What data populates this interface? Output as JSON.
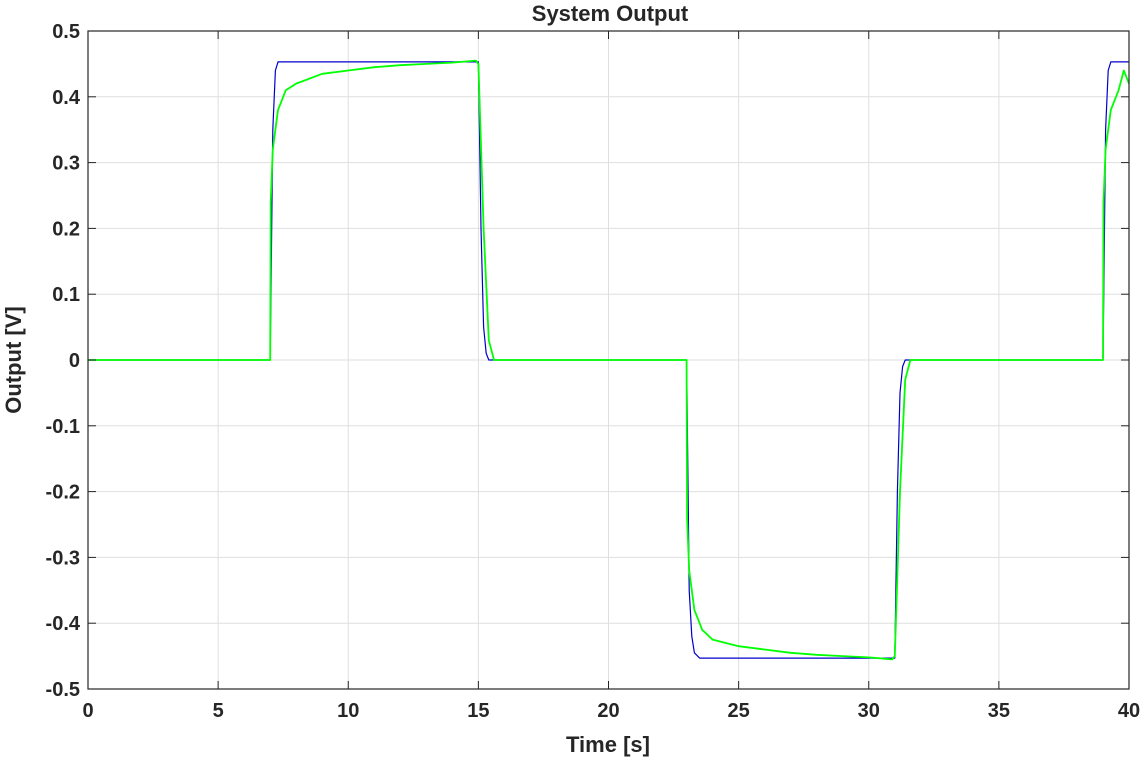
{
  "chart_data": {
    "type": "line",
    "title": "System Output",
    "xlabel": "Time [s]",
    "ylabel": "Output [V]",
    "xlim": [
      0,
      40
    ],
    "ylim": [
      -0.5,
      0.5
    ],
    "grid": true,
    "x_ticks": [
      0,
      5,
      10,
      15,
      20,
      25,
      30,
      35,
      40
    ],
    "x_tick_labels": [
      "0",
      "5",
      "10",
      "15",
      "20",
      "25",
      "30",
      "35",
      "40"
    ],
    "y_ticks": [
      0.5,
      0.4,
      0.3,
      0.2,
      0.1,
      0,
      -0.1,
      -0.2,
      -0.3,
      -0.4,
      -0.5
    ],
    "y_tick_labels": [
      "0.5",
      "0.4",
      "0.3",
      "0.2",
      "0.1",
      "0",
      "-0.1",
      "-0.2",
      "-0.3",
      "-0.4",
      "-0.5"
    ],
    "series": [
      {
        "color": "#0000cc",
        "x": [
          0,
          7,
          7.1,
          7.2,
          7.3,
          15,
          15.1,
          15.2,
          15.3,
          15.4,
          23,
          23.1,
          23.2,
          23.3,
          23.5,
          31,
          31.1,
          31.2,
          31.3,
          31.4,
          39,
          39.1,
          39.2,
          39.3,
          40
        ],
        "y": [
          0,
          0,
          0.35,
          0.44,
          0.453,
          0.453,
          0.2,
          0.05,
          0.01,
          0,
          0,
          -0.35,
          -0.42,
          -0.445,
          -0.453,
          -0.453,
          -0.2,
          -0.05,
          -0.01,
          0,
          0,
          0.35,
          0.44,
          0.453,
          0.453
        ]
      },
      {
        "color": "#00ff00",
        "x": [
          0,
          7,
          7.02,
          7.1,
          7.3,
          7.6,
          8,
          9,
          10,
          11,
          12,
          13,
          14,
          14.9,
          15.0,
          15.2,
          15.4,
          15.6,
          23,
          23.02,
          23.1,
          23.3,
          23.6,
          24,
          25,
          26,
          27,
          28,
          29,
          30,
          30.9,
          31.0,
          31.2,
          31.4,
          31.6,
          39,
          39.02,
          39.1,
          39.3,
          39.6,
          39.8,
          40
        ],
        "y": [
          0,
          0,
          0.24,
          0.32,
          0.38,
          0.41,
          0.42,
          0.435,
          0.44,
          0.445,
          0.448,
          0.45,
          0.452,
          0.455,
          0.45,
          0.2,
          0.03,
          0,
          0,
          -0.24,
          -0.32,
          -0.38,
          -0.41,
          -0.425,
          -0.435,
          -0.44,
          -0.445,
          -0.448,
          -0.45,
          -0.452,
          -0.455,
          -0.45,
          -0.2,
          -0.03,
          0,
          0,
          0.24,
          0.32,
          0.38,
          0.41,
          0.44,
          0.42
        ]
      }
    ]
  }
}
